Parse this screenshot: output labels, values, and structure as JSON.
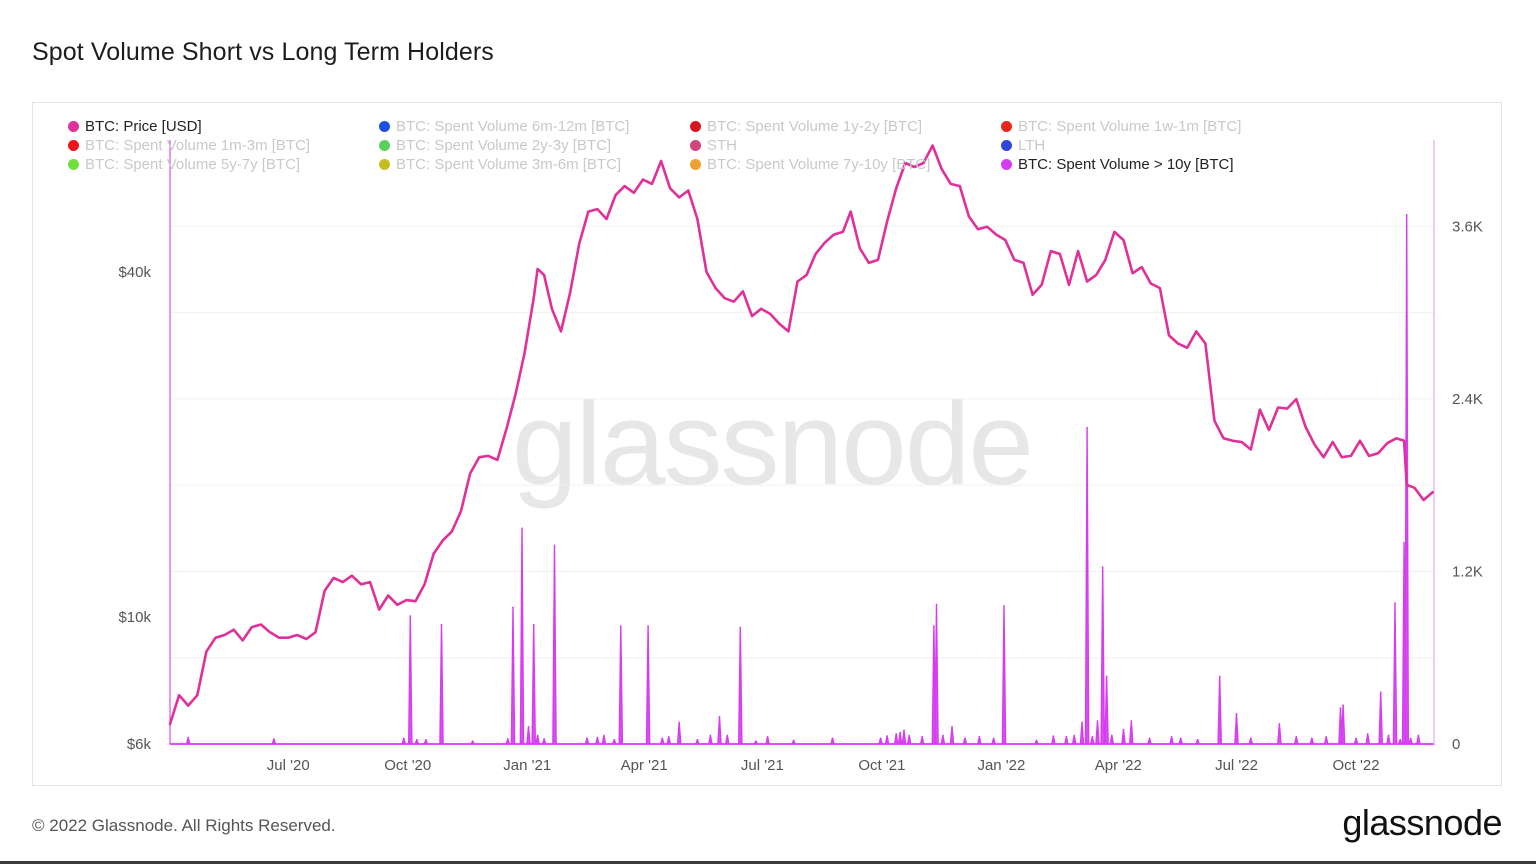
{
  "page": {
    "title": "Spot Volume Short vs Long Term Holders",
    "watermark": "glassnode",
    "footer_copyright": "© 2022 Glassnode. All Rights Reserved.",
    "footer_logo": "glassnode"
  },
  "legend": [
    {
      "label": "BTC: Price [USD]",
      "color": "#e0309a",
      "active": true
    },
    {
      "label": "BTC: Spent Volume 6m-12m [BTC]",
      "color": "#1f4fe0",
      "active": false
    },
    {
      "label": "BTC: Spent Volume 1y-2y [BTC]",
      "color": "#d9141d",
      "active": false
    },
    {
      "label": "BTC: Spent Volume 1w-1m [BTC]",
      "color": "#e8261c",
      "active": false
    },
    {
      "label": "BTC: Spent Volume 1m-3m [BTC]",
      "color": "#f0141a",
      "active": false
    },
    {
      "label": "BTC: Spent Volume 2y-3y [BTC]",
      "color": "#5ad05a",
      "active": false
    },
    {
      "label": "STH",
      "color": "#d0457c",
      "active": false
    },
    {
      "label": "LTH",
      "color": "#3046d8",
      "active": false
    },
    {
      "label": "BTC: Spent Volume 5y-7y [BTC]",
      "color": "#6ee03c",
      "active": false
    },
    {
      "label": "BTC: Spent Volume 3m-6m [BTC]",
      "color": "#c8bd20",
      "active": false
    },
    {
      "label": "BTC: Spent Volume 7y-10y [BTC]",
      "color": "#f0a030",
      "active": false
    },
    {
      "label": "BTC: Spent Volume > 10y [BTC]",
      "color": "#d63cf0",
      "active": true
    }
  ],
  "chart_data": {
    "type": "line",
    "title": "Spot Volume Short vs Long Term Holders",
    "x_ticks": [
      "Jul '20",
      "Oct '20",
      "Jan '21",
      "Apr '21",
      "Jul '21",
      "Oct '21",
      "Jan '22",
      "Apr '22",
      "Jul '22",
      "Oct '22"
    ],
    "x_tick_dates": [
      "2020-07-01",
      "2020-10-01",
      "2021-01-01",
      "2021-04-01",
      "2021-07-01",
      "2021-10-01",
      "2022-01-01",
      "2022-04-01",
      "2022-07-01",
      "2022-10-01"
    ],
    "x_range": [
      "2020-04-01",
      "2022-11-30"
    ],
    "y_left": {
      "scale": "log",
      "ticks": [
        6000,
        10000,
        40000
      ],
      "tick_labels": [
        "$6k",
        "$10k",
        "$40k"
      ],
      "range": [
        6000,
        68000
      ]
    },
    "y_right": {
      "scale": "linear",
      "ticks": [
        0,
        1200,
        2400,
        3600
      ],
      "tick_labels": [
        "0",
        "1.2K",
        "2.4K",
        "3.6K"
      ],
      "range": [
        0,
        4200
      ]
    },
    "grid": true,
    "legend_position": "top",
    "series": [
      {
        "name": "BTC: Price [USD]",
        "axis": "left",
        "color": "#e0309a",
        "kind": "line",
        "points": [
          [
            "2020-04-01",
            6500
          ],
          [
            "2020-04-08",
            7300
          ],
          [
            "2020-04-15",
            7000
          ],
          [
            "2020-04-22",
            7300
          ],
          [
            "2020-04-29",
            8700
          ],
          [
            "2020-05-06",
            9200
          ],
          [
            "2020-05-13",
            9300
          ],
          [
            "2020-05-20",
            9500
          ],
          [
            "2020-05-27",
            9100
          ],
          [
            "2020-06-03",
            9600
          ],
          [
            "2020-06-10",
            9700
          ],
          [
            "2020-06-17",
            9400
          ],
          [
            "2020-06-24",
            9200
          ],
          [
            "2020-07-01",
            9200
          ],
          [
            "2020-07-08",
            9300
          ],
          [
            "2020-07-15",
            9150
          ],
          [
            "2020-07-22",
            9400
          ],
          [
            "2020-07-29",
            11100
          ],
          [
            "2020-08-05",
            11700
          ],
          [
            "2020-08-12",
            11500
          ],
          [
            "2020-08-19",
            11800
          ],
          [
            "2020-08-26",
            11400
          ],
          [
            "2020-09-02",
            11500
          ],
          [
            "2020-09-09",
            10300
          ],
          [
            "2020-09-16",
            10900
          ],
          [
            "2020-09-23",
            10500
          ],
          [
            "2020-09-30",
            10700
          ],
          [
            "2020-10-07",
            10650
          ],
          [
            "2020-10-14",
            11400
          ],
          [
            "2020-10-21",
            12900
          ],
          [
            "2020-10-28",
            13600
          ],
          [
            "2020-11-04",
            14100
          ],
          [
            "2020-11-11",
            15300
          ],
          [
            "2020-11-18",
            17800
          ],
          [
            "2020-11-25",
            19000
          ],
          [
            "2020-12-02",
            19100
          ],
          [
            "2020-12-09",
            18800
          ],
          [
            "2020-12-16",
            21300
          ],
          [
            "2020-12-23",
            24500
          ],
          [
            "2020-12-30",
            28900
          ],
          [
            "2021-01-06",
            36000
          ],
          [
            "2021-01-09",
            40500
          ],
          [
            "2021-01-14",
            39500
          ],
          [
            "2021-01-20",
            34500
          ],
          [
            "2021-01-27",
            31500
          ],
          [
            "2021-02-03",
            36800
          ],
          [
            "2021-02-10",
            44800
          ],
          [
            "2021-02-17",
            51000
          ],
          [
            "2021-02-24",
            51500
          ],
          [
            "2021-03-03",
            49500
          ],
          [
            "2021-03-10",
            54500
          ],
          [
            "2021-03-17",
            56500
          ],
          [
            "2021-03-24",
            55000
          ],
          [
            "2021-03-31",
            58000
          ],
          [
            "2021-04-07",
            57000
          ],
          [
            "2021-04-14",
            62500
          ],
          [
            "2021-04-21",
            56000
          ],
          [
            "2021-04-28",
            54000
          ],
          [
            "2021-05-05",
            55500
          ],
          [
            "2021-05-12",
            49500
          ],
          [
            "2021-05-19",
            40000
          ],
          [
            "2021-05-26",
            37500
          ],
          [
            "2021-06-02",
            36000
          ],
          [
            "2021-06-09",
            35500
          ],
          [
            "2021-06-16",
            37000
          ],
          [
            "2021-06-23",
            33500
          ],
          [
            "2021-06-30",
            34500
          ],
          [
            "2021-07-07",
            33800
          ],
          [
            "2021-07-14",
            32500
          ],
          [
            "2021-07-21",
            31500
          ],
          [
            "2021-07-28",
            38500
          ],
          [
            "2021-08-04",
            39500
          ],
          [
            "2021-08-11",
            43000
          ],
          [
            "2021-08-18",
            45000
          ],
          [
            "2021-08-25",
            46500
          ],
          [
            "2021-09-01",
            47000
          ],
          [
            "2021-09-07",
            51000
          ],
          [
            "2021-09-14",
            44000
          ],
          [
            "2021-09-21",
            41500
          ],
          [
            "2021-09-28",
            42000
          ],
          [
            "2021-10-05",
            49000
          ],
          [
            "2021-10-12",
            56000
          ],
          [
            "2021-10-19",
            62000
          ],
          [
            "2021-10-26",
            61000
          ],
          [
            "2021-11-02",
            62000
          ],
          [
            "2021-11-09",
            66500
          ],
          [
            "2021-11-16",
            60500
          ],
          [
            "2021-11-23",
            57000
          ],
          [
            "2021-11-30",
            56500
          ],
          [
            "2021-12-07",
            50000
          ],
          [
            "2021-12-14",
            47500
          ],
          [
            "2021-12-21",
            48000
          ],
          [
            "2021-12-28",
            46500
          ],
          [
            "2022-01-04",
            45500
          ],
          [
            "2022-01-11",
            42000
          ],
          [
            "2022-01-18",
            41500
          ],
          [
            "2022-01-25",
            36500
          ],
          [
            "2022-02-01",
            38000
          ],
          [
            "2022-02-08",
            43500
          ],
          [
            "2022-02-15",
            43000
          ],
          [
            "2022-02-22",
            38000
          ],
          [
            "2022-03-01",
            43500
          ],
          [
            "2022-03-08",
            38500
          ],
          [
            "2022-03-15",
            39500
          ],
          [
            "2022-03-22",
            42000
          ],
          [
            "2022-03-29",
            47000
          ],
          [
            "2022-04-05",
            45500
          ],
          [
            "2022-04-12",
            39800
          ],
          [
            "2022-04-19",
            40800
          ],
          [
            "2022-04-26",
            38200
          ],
          [
            "2022-05-03",
            37500
          ],
          [
            "2022-05-10",
            31000
          ],
          [
            "2022-05-17",
            30000
          ],
          [
            "2022-05-24",
            29500
          ],
          [
            "2022-05-31",
            31500
          ],
          [
            "2022-06-07",
            30000
          ],
          [
            "2022-06-14",
            22000
          ],
          [
            "2022-06-21",
            20500
          ],
          [
            "2022-06-28",
            20300
          ],
          [
            "2022-07-05",
            20200
          ],
          [
            "2022-07-12",
            19600
          ],
          [
            "2022-07-19",
            23000
          ],
          [
            "2022-07-26",
            21200
          ],
          [
            "2022-08-02",
            23200
          ],
          [
            "2022-08-09",
            23100
          ],
          [
            "2022-08-16",
            24000
          ],
          [
            "2022-08-23",
            21500
          ],
          [
            "2022-08-30",
            20000
          ],
          [
            "2022-09-06",
            19000
          ],
          [
            "2022-09-13",
            20200
          ],
          [
            "2022-09-20",
            19000
          ],
          [
            "2022-09-27",
            19100
          ],
          [
            "2022-10-04",
            20300
          ],
          [
            "2022-10-11",
            19100
          ],
          [
            "2022-10-18",
            19300
          ],
          [
            "2022-10-25",
            20100
          ],
          [
            "2022-11-01",
            20500
          ],
          [
            "2022-11-07",
            20300
          ],
          [
            "2022-11-09",
            17000
          ],
          [
            "2022-11-15",
            16800
          ],
          [
            "2022-11-22",
            16000
          ],
          [
            "2022-11-29",
            16500
          ]
        ]
      },
      {
        "name": "BTC: Spent Volume > 10y [BTC]",
        "axis": "right",
        "color": "#d63cf0",
        "kind": "spikes",
        "points": [
          [
            "2020-04-15",
            45
          ],
          [
            "2020-06-20",
            35
          ],
          [
            "2020-09-28",
            40
          ],
          [
            "2020-10-03",
            890
          ],
          [
            "2020-10-08",
            30
          ],
          [
            "2020-10-15",
            30
          ],
          [
            "2020-10-27",
            830
          ],
          [
            "2020-11-20",
            20
          ],
          [
            "2020-12-17",
            35
          ],
          [
            "2020-12-21",
            950
          ],
          [
            "2020-12-28",
            1500
          ],
          [
            "2021-01-02",
            120
          ],
          [
            "2021-01-06",
            830
          ],
          [
            "2021-01-09",
            60
          ],
          [
            "2021-01-14",
            35
          ],
          [
            "2021-01-22",
            1380
          ],
          [
            "2021-02-16",
            40
          ],
          [
            "2021-02-24",
            45
          ],
          [
            "2021-03-01",
            60
          ],
          [
            "2021-03-09",
            30
          ],
          [
            "2021-03-14",
            820
          ],
          [
            "2021-04-04",
            820
          ],
          [
            "2021-04-15",
            40
          ],
          [
            "2021-04-20",
            50
          ],
          [
            "2021-04-28",
            150
          ],
          [
            "2021-05-12",
            30
          ],
          [
            "2021-05-22",
            60
          ],
          [
            "2021-05-29",
            190
          ],
          [
            "2021-06-04",
            60
          ],
          [
            "2021-06-14",
            810
          ],
          [
            "2021-06-26",
            20
          ],
          [
            "2021-07-05",
            50
          ],
          [
            "2021-07-25",
            25
          ],
          [
            "2021-08-24",
            40
          ],
          [
            "2021-09-30",
            40
          ],
          [
            "2021-10-05",
            55
          ],
          [
            "2021-10-12",
            70
          ],
          [
            "2021-10-15",
            80
          ],
          [
            "2021-10-18",
            95
          ],
          [
            "2021-10-22",
            60
          ],
          [
            "2021-11-01",
            50
          ],
          [
            "2021-11-10",
            820
          ],
          [
            "2021-11-12",
            970
          ],
          [
            "2021-11-17",
            60
          ],
          [
            "2021-11-24",
            120
          ],
          [
            "2021-12-04",
            40
          ],
          [
            "2021-12-15",
            50
          ],
          [
            "2021-12-26",
            40
          ],
          [
            "2022-01-03",
            960
          ],
          [
            "2022-01-28",
            25
          ],
          [
            "2022-02-10",
            55
          ],
          [
            "2022-02-20",
            50
          ],
          [
            "2022-02-26",
            60
          ],
          [
            "2022-03-04",
            150
          ],
          [
            "2022-03-08",
            2200
          ],
          [
            "2022-03-12",
            50
          ],
          [
            "2022-03-16",
            160
          ],
          [
            "2022-03-20",
            1230
          ],
          [
            "2022-03-23",
            470
          ],
          [
            "2022-03-27",
            60
          ],
          [
            "2022-04-05",
            100
          ],
          [
            "2022-04-11",
            160
          ],
          [
            "2022-04-25",
            40
          ],
          [
            "2022-05-12",
            50
          ],
          [
            "2022-05-19",
            40
          ],
          [
            "2022-06-01",
            30
          ],
          [
            "2022-06-18",
            470
          ],
          [
            "2022-07-01",
            210
          ],
          [
            "2022-07-12",
            40
          ],
          [
            "2022-08-03",
            140
          ],
          [
            "2022-08-16",
            50
          ],
          [
            "2022-08-28",
            40
          ],
          [
            "2022-09-08",
            50
          ],
          [
            "2022-09-19",
            250
          ],
          [
            "2022-09-21",
            270
          ],
          [
            "2022-10-01",
            40
          ],
          [
            "2022-10-10",
            70
          ],
          [
            "2022-10-20",
            360
          ],
          [
            "2022-10-26",
            60
          ],
          [
            "2022-10-31",
            980
          ],
          [
            "2022-11-04",
            30
          ],
          [
            "2022-11-07",
            1400
          ],
          [
            "2022-11-09",
            3680
          ],
          [
            "2022-11-12",
            40
          ],
          [
            "2022-11-18",
            60
          ]
        ]
      }
    ]
  }
}
